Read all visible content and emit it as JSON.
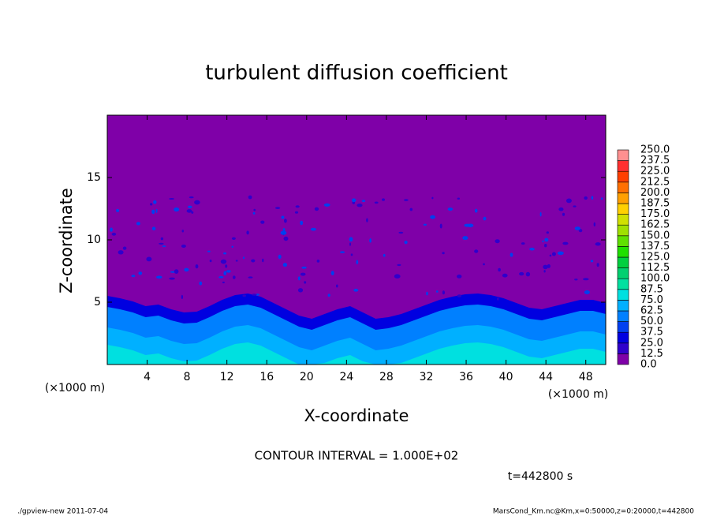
{
  "chart_data": {
    "type": "contour",
    "title": "turbulent diffusion coefficient",
    "x_label": "X-coordinate",
    "y_label": "Z-coordinate",
    "x_unit": "(×1000 m)",
    "y_unit": "(×1000 m)",
    "xlim": [
      0,
      50
    ],
    "xticks": [
      4,
      8,
      12,
      16,
      20,
      24,
      28,
      32,
      36,
      40,
      44,
      48
    ],
    "ylim": [
      0,
      20
    ],
    "yticks": [
      5,
      10,
      15
    ],
    "levels": [
      {
        "value": 0,
        "label": "0.0"
      },
      12.5,
      {
        "value": 25,
        "label": "25.0"
      },
      37.5,
      {
        "value": 50,
        "label": "50.0"
      },
      62.5,
      {
        "value": 75,
        "label": "75.0"
      },
      87.5,
      {
        "value": 100,
        "label": "100.0"
      },
      112.5,
      {
        "value": 125,
        "label": "125.0"
      },
      137.5,
      {
        "value": 150,
        "label": "150.0"
      },
      162.5,
      {
        "value": 175,
        "label": "175.0"
      },
      187.5,
      {
        "value": 200,
        "label": "200.0"
      },
      212.5,
      {
        "value": 225,
        "label": "225.0"
      },
      237.5,
      {
        "value": 250,
        "label": "250.0"
      }
    ],
    "colors": [
      "#7f00a8",
      "#3000cc",
      "#0000e0",
      "#0040f0",
      "#0080ff",
      "#00b0ff",
      "#00e0e0",
      "#00e0a0",
      "#00d070",
      "#00d040",
      "#20e000",
      "#60e000",
      "#a0e000",
      "#d0e000",
      "#ffd000",
      "#ffa000",
      "#ff7000",
      "#ff4000",
      "#ff3030",
      "#ff9090"
    ],
    "contour_interval": "CONTOUR INTERVAL = 1.000E+02",
    "time": "t=442800 s",
    "footer_left": "./gpview-new  2011-07-04",
    "footer_right": "MarsCond_Km.nc@Km,x=0:50000,z=0:20000,t=442800"
  }
}
